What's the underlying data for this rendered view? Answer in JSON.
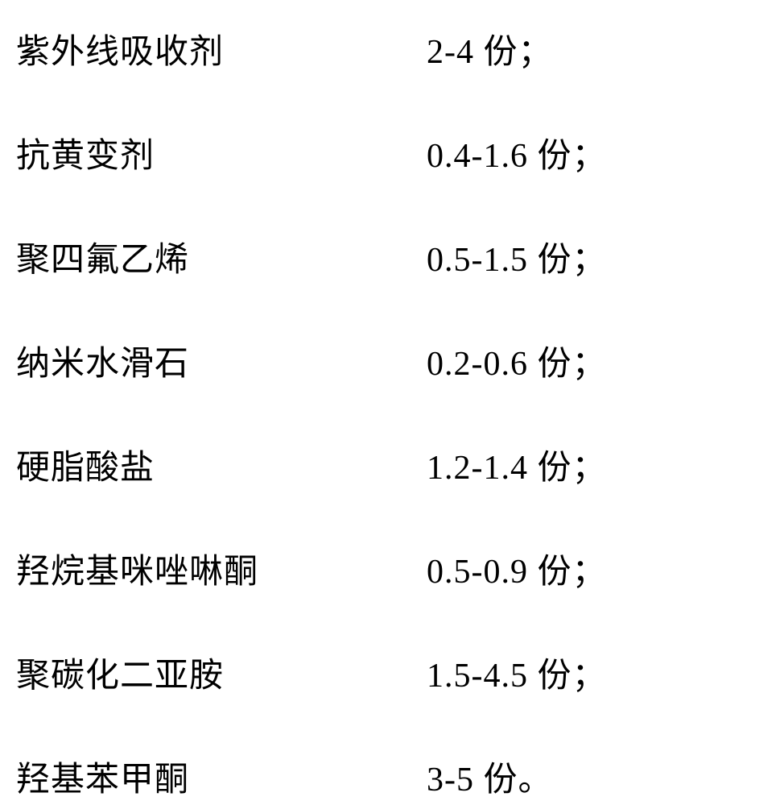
{
  "rows": [
    {
      "label": "紫外线吸收剂",
      "value": "2-4 份；"
    },
    {
      "label": "抗黄变剂",
      "value": "0.4-1.6 份；"
    },
    {
      "label": "聚四氟乙烯",
      "value": "0.5-1.5 份；"
    },
    {
      "label": "纳米水滑石",
      "value": "0.2-0.6 份；"
    },
    {
      "label": "硬脂酸盐",
      "value": "1.2-1.4 份；"
    },
    {
      "label": "羟烷基咪唑啉酮",
      "value": "0.5-0.9 份；"
    },
    {
      "label": "聚碳化二亚胺",
      "value": "1.5-4.5 份；"
    },
    {
      "label": "羟基苯甲酮",
      "value": "3-5 份。"
    }
  ],
  "styling": {
    "background_color": "#ffffff",
    "text_color": "#000000",
    "font_family": "SimSun",
    "font_size": 42,
    "row_spacing": 68,
    "label_width": 510,
    "container_width": 974,
    "container_height": 975
  }
}
